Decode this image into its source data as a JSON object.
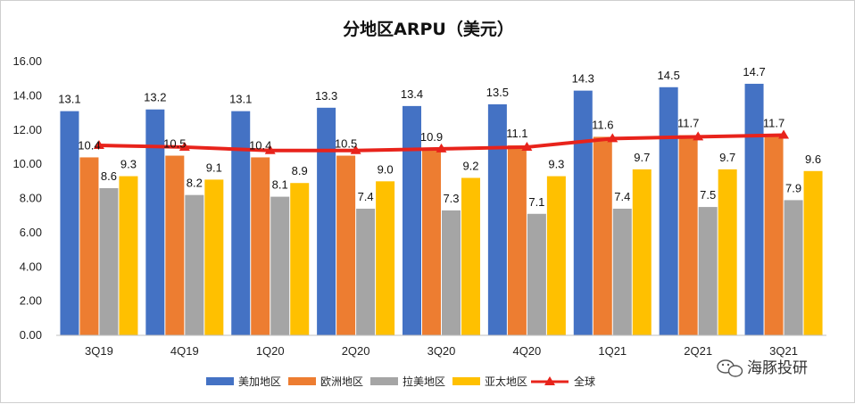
{
  "chart_data": {
    "type": "bar",
    "title": "分地区ARPU（美元）",
    "categories": [
      "3Q19",
      "4Q19",
      "1Q20",
      "2Q20",
      "3Q20",
      "4Q20",
      "1Q21",
      "2Q21",
      "3Q21"
    ],
    "ylim": [
      0,
      16
    ],
    "yticks": [
      "0.00",
      "2.00",
      "4.00",
      "6.00",
      "8.00",
      "10.00",
      "12.00",
      "14.00",
      "16.00"
    ],
    "series": [
      {
        "name": "美加地区",
        "kind": "bar",
        "color": "#4472C4",
        "values": [
          13.1,
          13.2,
          13.1,
          13.3,
          13.4,
          13.5,
          14.3,
          14.5,
          14.7
        ],
        "labels": [
          "13.1",
          "13.2",
          "13.1",
          "13.3",
          "13.4",
          "13.5",
          "14.3",
          "14.5",
          "14.7"
        ]
      },
      {
        "name": "欧洲地区",
        "kind": "bar",
        "color": "#ED7D31",
        "values": [
          10.4,
          10.5,
          10.4,
          10.5,
          10.9,
          11.1,
          11.6,
          11.7,
          11.7
        ],
        "labels": [
          "10.4",
          "10.5",
          "10.4",
          "10.5",
          "10.9",
          "11.1",
          "11.6",
          "11.7",
          "11.7"
        ]
      },
      {
        "name": "拉美地区",
        "kind": "bar",
        "color": "#A5A5A5",
        "values": [
          8.6,
          8.2,
          8.1,
          7.4,
          7.3,
          7.1,
          7.4,
          7.5,
          7.9
        ],
        "labels": [
          "8.6",
          "8.2",
          "8.1",
          "7.4",
          "7.3",
          "7.1",
          "7.4",
          "7.5",
          "7.9"
        ]
      },
      {
        "name": "亚太地区",
        "kind": "bar",
        "color": "#FFC000",
        "values": [
          9.3,
          9.1,
          8.9,
          9.0,
          9.2,
          9.3,
          9.7,
          9.7,
          9.6
        ],
        "labels": [
          "9.3",
          "9.1",
          "8.9",
          "9.0",
          "9.2",
          "9.3",
          "9.7",
          "9.7",
          "9.6"
        ]
      },
      {
        "name": "全球",
        "kind": "line",
        "color": "#E8231B",
        "values": [
          11.1,
          11.0,
          10.8,
          10.8,
          10.9,
          11.0,
          11.5,
          11.6,
          11.7
        ]
      }
    ],
    "legend_position": "bottom",
    "grid": false
  },
  "watermark": {
    "text": "海豚投研",
    "icon": "wechat-icon"
  }
}
